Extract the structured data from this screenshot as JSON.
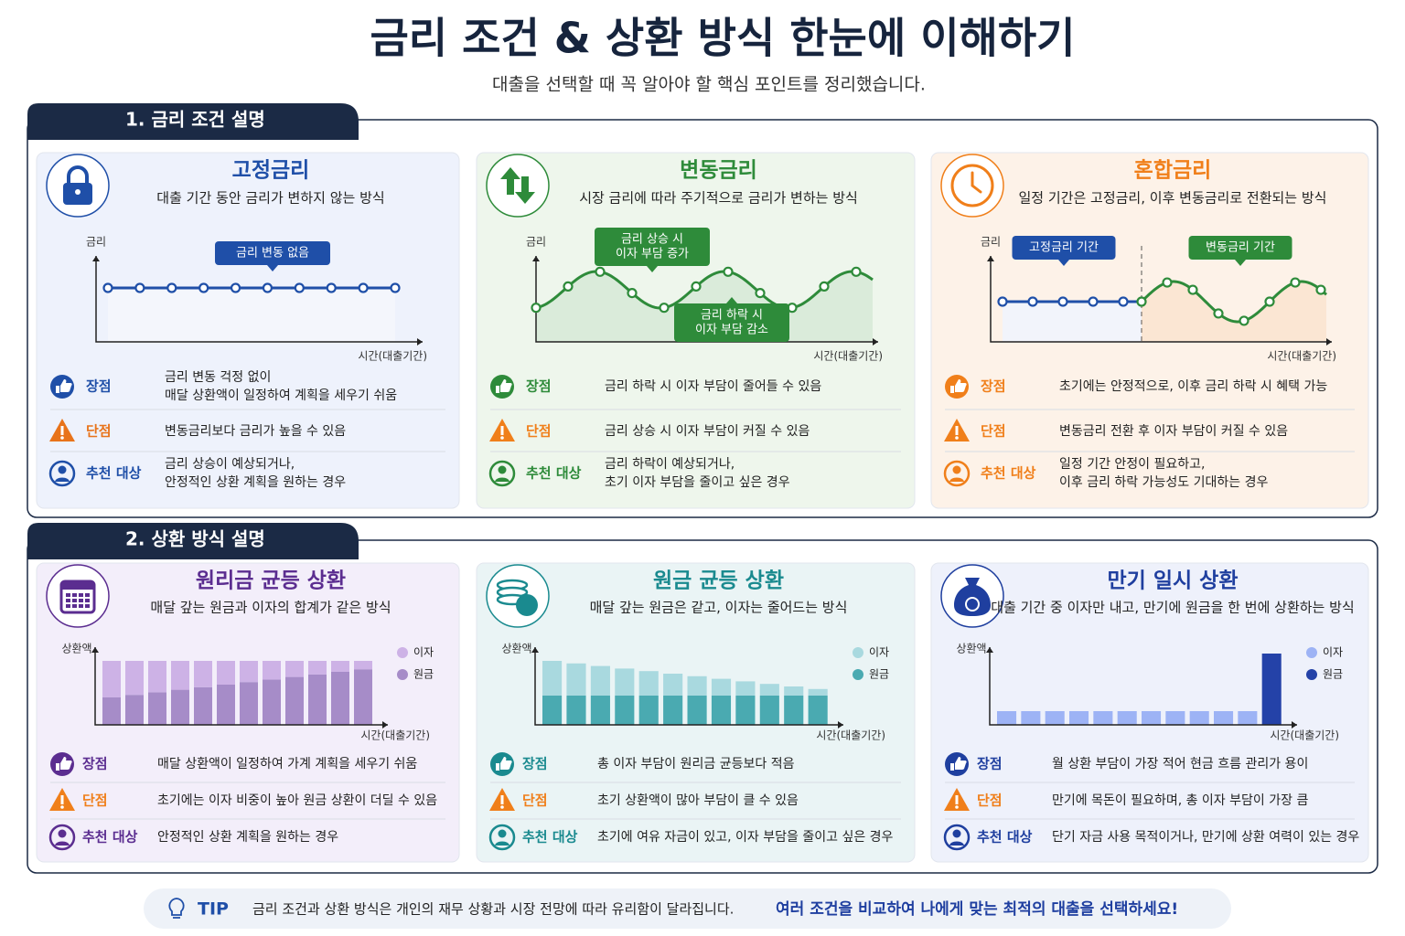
{
  "header": {
    "title": "금리 조건 & 상환 방식 한눈에 이해하기",
    "subtitle": "대출을 선택할 때 꼭 알아야 할 핵심 포인트를 정리했습니다."
  },
  "sections": [
    {
      "title": "1. 금리 조건 설명",
      "cards": [
        {
          "title": "고정금리",
          "description": "대출 기간 동안 금리가 변하지 않는 방식",
          "chart": {
            "y_label": "금리",
            "x_label": "시간(대출기간)",
            "callouts": [
              [
                "금리 변동 없음"
              ]
            ]
          },
          "rows": [
            {
              "label": "장점",
              "text": [
                "금리 변동 걱정 없이",
                "매달 상환액이 일정하여 계획을 세우기 쉬움"
              ]
            },
            {
              "label": "단점",
              "text": [
                "변동금리보다 금리가 높을 수 있음"
              ]
            },
            {
              "label": "추천 대상",
              "text": [
                "금리 상승이 예상되거나,",
                "안정적인 상환 계획을 원하는 경우"
              ]
            }
          ]
        },
        {
          "title": "변동금리",
          "description": "시장 금리에 따라 주기적으로 금리가 변하는 방식",
          "chart": {
            "y_label": "금리",
            "x_label": "시간(대출기간)",
            "callouts": [
              [
                "금리 상승 시",
                "이자 부담 증가"
              ],
              [
                "금리 하락 시",
                "이자 부담 감소"
              ]
            ]
          },
          "rows": [
            {
              "label": "장점",
              "text": [
                "금리 하락 시 이자 부담이 줄어들 수 있음"
              ]
            },
            {
              "label": "단점",
              "text": [
                "금리 상승 시 이자 부담이 커질 수 있음"
              ]
            },
            {
              "label": "추천 대상",
              "text": [
                "금리 하락이 예상되거나,",
                "초기 이자 부담을 줄이고 싶은 경우"
              ]
            }
          ]
        },
        {
          "title": "혼합금리",
          "description": "일정 기간은 고정금리, 이후 변동금리로 전환되는 방식",
          "chart": {
            "y_label": "금리",
            "x_label": "시간(대출기간)",
            "callouts": [
              [
                "고정금리 기간"
              ],
              [
                "변동금리 기간"
              ]
            ]
          },
          "rows": [
            {
              "label": "장점",
              "text": [
                "초기에는 안정적으로, 이후 금리 하락 시 혜택 가능"
              ]
            },
            {
              "label": "단점",
              "text": [
                "변동금리 전환 후 이자 부담이 커질 수 있음"
              ]
            },
            {
              "label": "추천 대상",
              "text": [
                "일정 기간 안정이 필요하고,",
                "이후 금리 하락 가능성도 기대하는 경우"
              ]
            }
          ]
        }
      ]
    },
    {
      "title": "2. 상환 방식 설명",
      "cards": [
        {
          "title": "원리금 균등 상환",
          "description": "매달 갚는 원금과 이자의 합계가 같은 방식",
          "chart": {
            "y_label": "상환액",
            "x_label": "시간(대출기간)",
            "legend": [
              "이자",
              "원금"
            ]
          },
          "rows": [
            {
              "label": "장점",
              "text": [
                "매달 상환액이 일정하여 가계 계획을 세우기 쉬움"
              ]
            },
            {
              "label": "단점",
              "text": [
                "초기에는 이자 비중이 높아 원금 상환이 더딜 수 있음"
              ]
            },
            {
              "label": "추천 대상",
              "text": [
                "안정적인 상환 계획을 원하는 경우"
              ]
            }
          ]
        },
        {
          "title": "원금 균등 상환",
          "description": "매달 갚는 원금은 같고, 이자는 줄어드는 방식",
          "chart": {
            "y_label": "상환액",
            "x_label": "시간(대출기간)",
            "legend": [
              "이자",
              "원금"
            ]
          },
          "rows": [
            {
              "label": "장점",
              "text": [
                "총 이자 부담이 원리금 균등보다 적음"
              ]
            },
            {
              "label": "단점",
              "text": [
                "초기 상환액이 많아 부담이 클 수 있음"
              ]
            },
            {
              "label": "추천 대상",
              "text": [
                "초기에 여유 자금이 있고, 이자 부담을 줄이고 싶은 경우"
              ]
            }
          ]
        },
        {
          "title": "만기 일시 상환",
          "description": "대출 기간 중 이자만 내고, 만기에 원금을 한 번에 상환하는 방식",
          "chart": {
            "y_label": "상환액",
            "x_label": "시간(대출기간)",
            "legend": [
              "이자",
              "원금"
            ]
          },
          "rows": [
            {
              "label": "장점",
              "text": [
                "월 상환 부담이 가장 적어 현금 흐름 관리가 용이"
              ]
            },
            {
              "label": "단점",
              "text": [
                "만기에 목돈이 필요하며, 총 이자 부담이 가장 큼"
              ]
            },
            {
              "label": "추천 대상",
              "text": [
                "단기 자금 사용 목적이거나, 만기에 상환 여력이 있는 경우"
              ]
            }
          ]
        }
      ]
    }
  ],
  "tip": {
    "label": "TIP",
    "text": "금리 조건과 상환 방식은 개인의 재무 상황과 시장 전망에 따라 유리함이 달라집니다.",
    "highlight": "여러 조건을 비교하여 나에게 맞는 최적의 대출을 선택하세요!"
  }
}
